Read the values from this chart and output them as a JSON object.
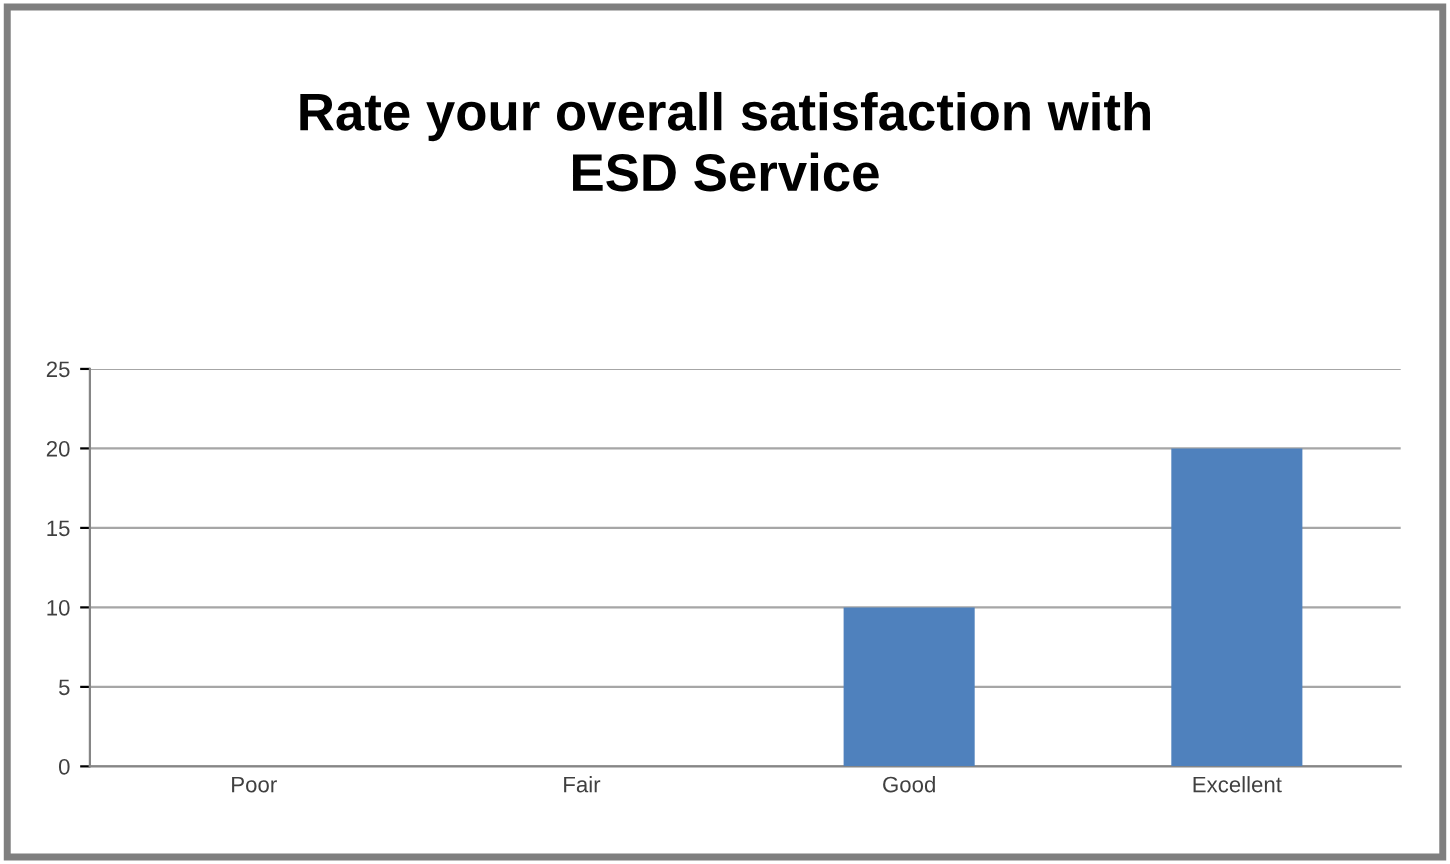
{
  "chart_data": {
    "type": "bar",
    "title": "Rate your overall satisfaction with\nESD Service",
    "categories": [
      "Poor",
      "Fair",
      "Good",
      "Excellent"
    ],
    "values": [
      0,
      0,
      10,
      20
    ],
    "color": "#4f81bd",
    "ylim": [
      0,
      25
    ],
    "yticks": [
      0,
      5,
      10,
      15,
      20,
      25
    ],
    "grid": "y",
    "legend": false
  }
}
